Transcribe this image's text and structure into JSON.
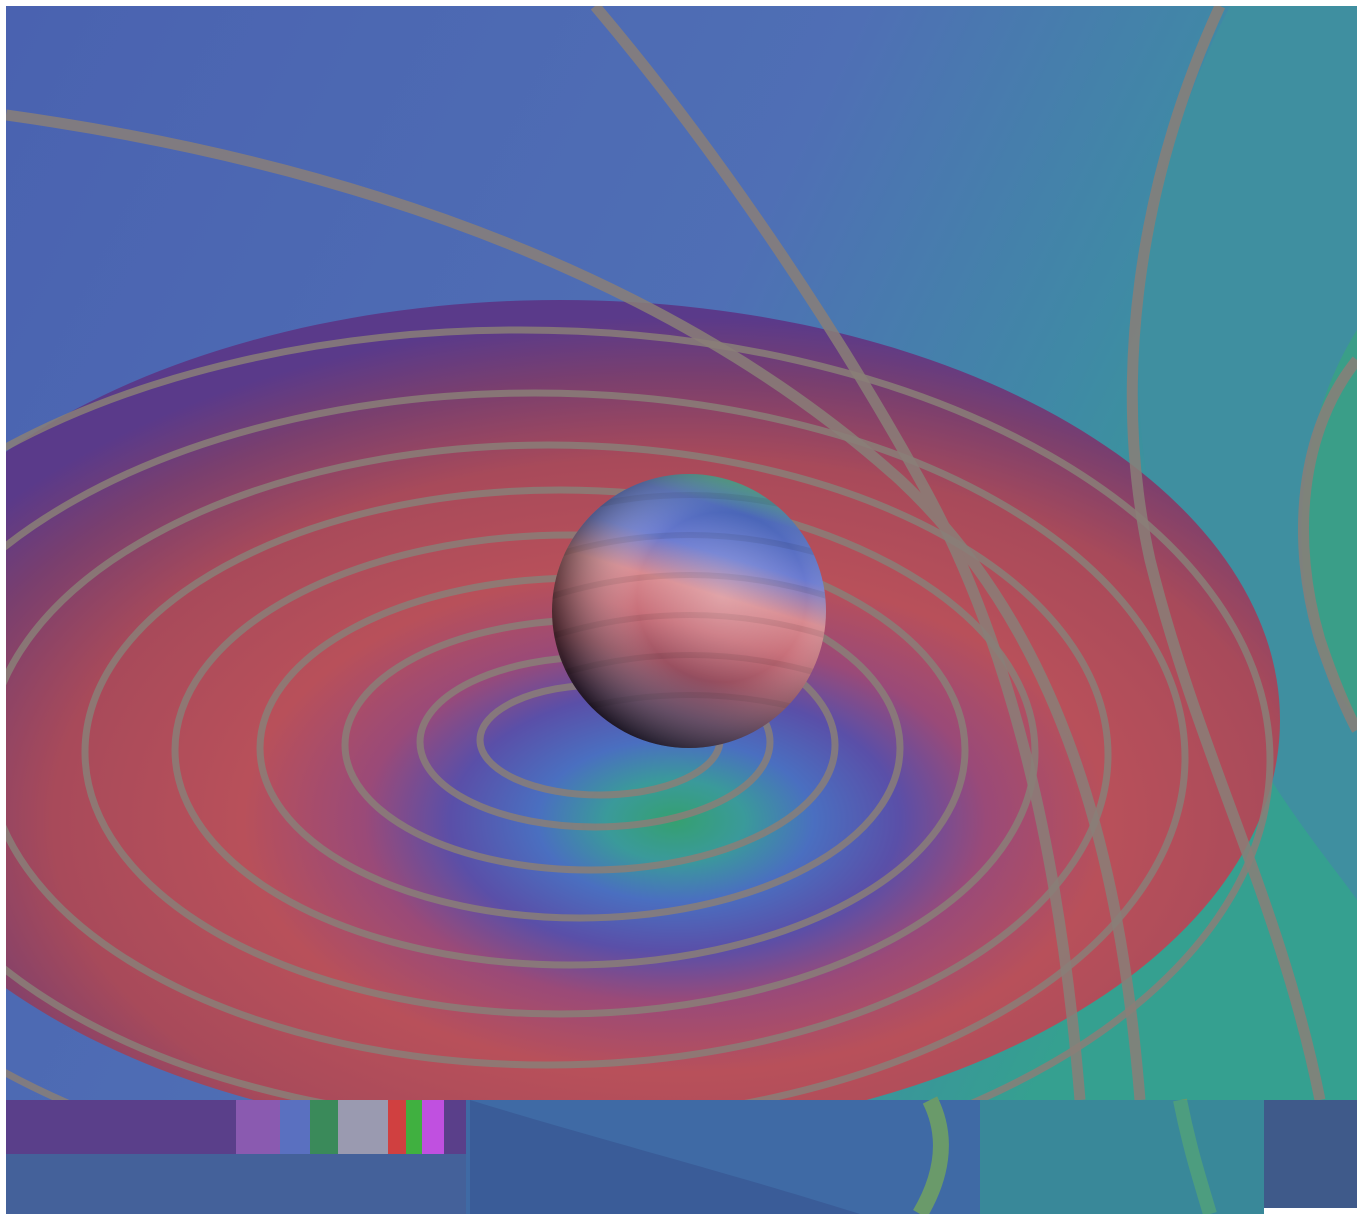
{
  "image": {
    "description_colors": {
      "background_blue": "#4a6fb0",
      "teal": "#3f8f9a",
      "green_teal": "#3a9e88",
      "purple": "#5a3f8f",
      "red": "#b8505a",
      "contour_line": "#8a7f78"
    },
    "icons": {
      "sphere": "sphere-icon"
    }
  }
}
